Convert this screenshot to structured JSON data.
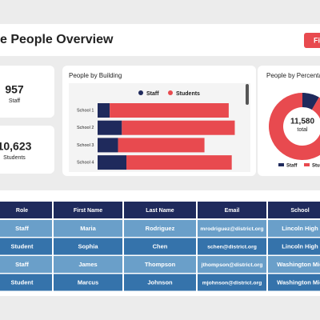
{
  "header": {
    "title": "e People Overview",
    "button": "Fi"
  },
  "kpis": [
    {
      "value": "957",
      "label": "Staff"
    },
    {
      "value": "10,623",
      "label": "Students"
    }
  ],
  "bar_chart": {
    "type": "bar",
    "title": "People by Building",
    "categories": [
      "School 1",
      "School 2",
      "School 3",
      "School 4"
    ],
    "series": [
      {
        "name": "Staff",
        "color": "#1f2a5c",
        "values": [
          16,
          32,
          27,
          38
        ]
      },
      {
        "name": "Students",
        "color": "#e84a4f",
        "values": [
          157,
          149,
          114,
          139
        ]
      }
    ],
    "xlim": [
      0,
      190
    ]
  },
  "donut_chart": {
    "type": "pie",
    "title": "People by Percentag",
    "center_value": "11,580",
    "center_label": "total",
    "categories": [
      "Staff",
      "Stud"
    ],
    "colors": [
      "#1f2a5c",
      "#e84a4f"
    ],
    "values": [
      957,
      10623
    ]
  },
  "table": {
    "columns": [
      "Role",
      "First Name",
      "Last Name",
      "Email",
      "School"
    ],
    "rows": [
      [
        "Staff",
        "Maria",
        "Rodriguez",
        "mrodriguez@district.org",
        "Lincoln High"
      ],
      [
        "Student",
        "Sophia",
        "Chen",
        "schen@district.org",
        "Lincoln High"
      ],
      [
        "Staff",
        "James",
        "Thompson",
        "jthompson@district.org",
        "Washington Mid"
      ],
      [
        "Student",
        "Marcus",
        "Johnson",
        "mjohnson@district.org",
        "Washington Mid"
      ]
    ]
  }
}
